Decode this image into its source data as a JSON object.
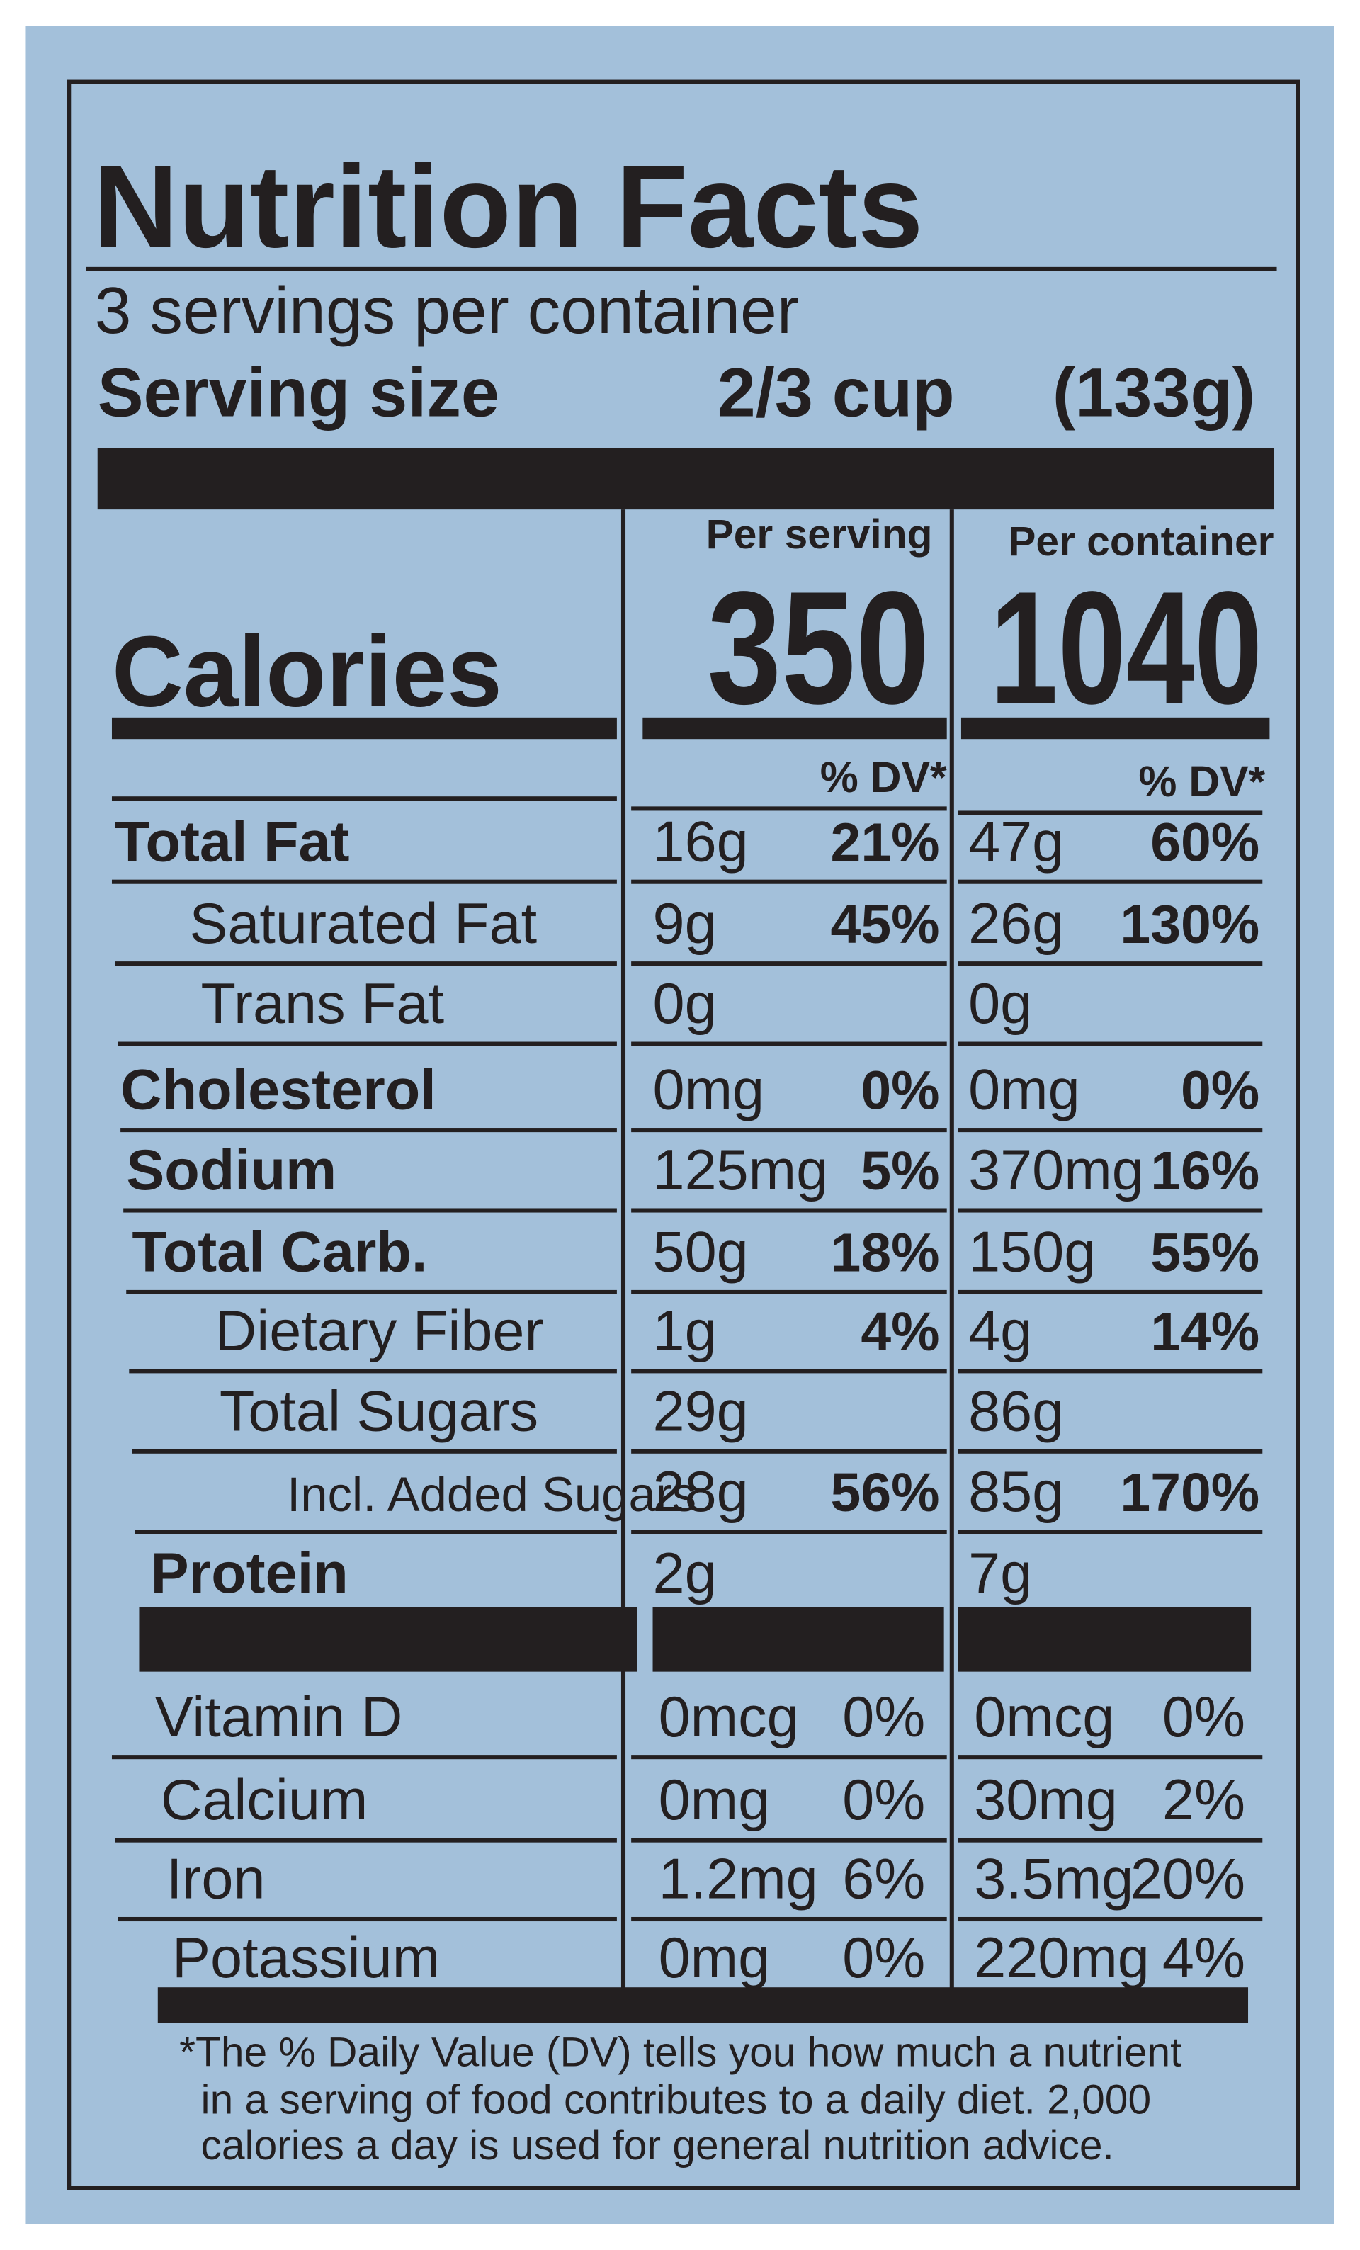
{
  "title": "Nutrition Facts",
  "servings": "3 servings per container",
  "serving_size": {
    "label": "Serving size",
    "amount": "2/3 cup",
    "weight": "(133g)"
  },
  "columns": [
    "Per serving",
    "Per container"
  ],
  "calories": {
    "label": "Calories",
    "values": [
      "350",
      "1040"
    ]
  },
  "dv_header": "% DV*",
  "rows": [
    {
      "name": "Total Fat",
      "serving": [
        "16g",
        "21%"
      ],
      "container": [
        "47g",
        "60%"
      ]
    },
    {
      "name": "Saturated Fat",
      "serving": [
        "9g",
        "45%"
      ],
      "container": [
        "26g",
        "130%"
      ]
    },
    {
      "name": "Trans Fat",
      "serving": [
        "0g"
      ],
      "container": [
        "0g"
      ]
    },
    {
      "name": "Cholesterol",
      "serving": [
        "0mg",
        "0%"
      ],
      "container": [
        "0mg",
        "0%"
      ]
    },
    {
      "name": "Sodium",
      "serving": [
        "125mg",
        "5%"
      ],
      "container": [
        "370mg",
        "16%"
      ]
    },
    {
      "name": "Total Carb.",
      "serving": [
        "50g",
        "18%"
      ],
      "container": [
        "150g",
        "55%"
      ]
    },
    {
      "name": "Dietary Fiber",
      "serving": [
        "1g",
        "4%"
      ],
      "container": [
        "4g",
        "14%"
      ]
    },
    {
      "name": "Total Sugars",
      "serving": [
        "29g"
      ],
      "container": [
        "86g"
      ]
    },
    {
      "name": "Incl. Added Sugars",
      "serving": [
        "28g",
        "56%"
      ],
      "container": [
        "85g",
        "170%"
      ]
    },
    {
      "name": "Protein",
      "serving": [
        "2g"
      ],
      "container": [
        "7g"
      ]
    }
  ],
  "vitamins": [
    {
      "name": "Vitamin D",
      "serving": [
        "0mcg",
        "0%"
      ],
      "container": [
        "0mcg",
        "0%"
      ]
    },
    {
      "name": "Calcium",
      "serving": [
        "0mg",
        "0%"
      ],
      "container": [
        "30mg",
        "2%"
      ]
    },
    {
      "name": "Iron",
      "serving": [
        "1.2mg",
        "6%"
      ],
      "container": [
        "3.5mg",
        "20%"
      ]
    },
    {
      "name": "Potassium",
      "serving": [
        "0mg",
        "0%"
      ],
      "container": [
        "220mg",
        "4%"
      ]
    }
  ],
  "footnote": [
    "*The % Daily Value (DV) tells you how much a nutrient",
    "in a serving of food contributes to a daily diet. 2,000",
    "calories a day is used for general nutrition advice."
  ]
}
